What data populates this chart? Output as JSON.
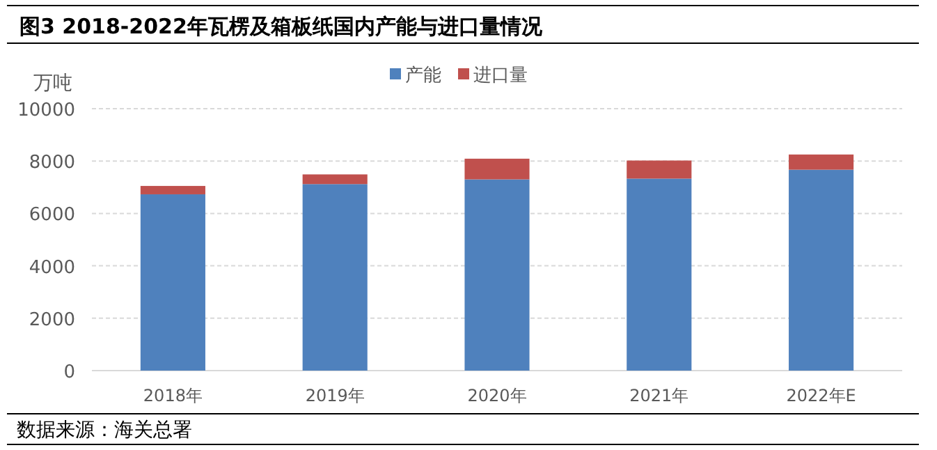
{
  "chart_data": {
    "type": "bar",
    "stacked": true,
    "title": "图3 2018-2022年瓦楞及箱板纸国内产能与进口量情况",
    "ylabel": "万吨",
    "categories": [
      "2018年",
      "2019年",
      "2020年",
      "2021年",
      "2022年E"
    ],
    "series": [
      {
        "name": "产能",
        "color": "#4f81bd",
        "values": [
          6730,
          7120,
          7300,
          7330,
          7670
        ]
      },
      {
        "name": "进口量",
        "color": "#c0504d",
        "values": [
          320,
          370,
          790,
          690,
          580
        ]
      }
    ],
    "ylim": [
      0,
      10000
    ],
    "yticks": [
      0,
      2000,
      4000,
      6000,
      8000,
      10000
    ],
    "grid": "y",
    "legend": "top",
    "annotations": [
      "数据来源：海关总署"
    ]
  }
}
